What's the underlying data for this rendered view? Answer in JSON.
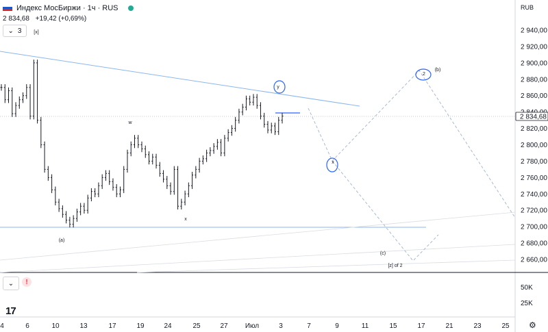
{
  "header": {
    "symbol": "Индекс МосБиржи · 1ч · RUS",
    "price": "2 834,68",
    "change": "+19,42 (+0,69%)",
    "flag_colors": [
      "#ffffff",
      "#1c57c8",
      "#d62828"
    ],
    "status_color": "#22ab94"
  },
  "controls": {
    "collapse_chevron": "⌄",
    "collapse_count": "3",
    "pane_chevron": "⌄",
    "warning_mark": "!",
    "logo": "17",
    "currency": "RUB",
    "settings_icon": "gear-icon",
    "settings_glyph": "⚙"
  },
  "chart_data": {
    "type": "candlestick",
    "currency": "RUB",
    "price_axis_ticks": [
      "2 940,00",
      "2 920,00",
      "2 900,00",
      "2 880,00",
      "2 860,00",
      "2 840,00",
      "2 820,00",
      "2 800,00",
      "2 780,00",
      "2 760,00",
      "2 740,00",
      "2 720,00",
      "2 700,00",
      "2 680,00",
      "2 660,00"
    ],
    "price_axis_tick_values": [
      2940,
      2920,
      2900,
      2880,
      2860,
      2840,
      2820,
      2800,
      2780,
      2760,
      2740,
      2720,
      2700,
      2680,
      2660
    ],
    "current_price_label": "2 834,68",
    "current_price": 2834.68,
    "volume_axis_ticks": [
      "50K",
      "25K"
    ],
    "time_axis_ticks": [
      "4",
      "6",
      "10",
      "13",
      "17",
      "19",
      "24",
      "25",
      "27",
      "Июл",
      "3",
      "7",
      "9",
      "11",
      "15",
      "17",
      "21",
      "23",
      "25"
    ],
    "price_path_hourly": [
      2870,
      2855,
      2866,
      2838,
      2848,
      2855,
      2860,
      2870,
      2835,
      2900,
      2830,
      2800,
      2770,
      2760,
      2745,
      2730,
      2722,
      2715,
      2708,
      2703,
      2710,
      2718,
      2725,
      2720,
      2735,
      2743,
      2740,
      2750,
      2760,
      2765,
      2755,
      2748,
      2740,
      2745,
      2770,
      2790,
      2800,
      2808,
      2800,
      2795,
      2788,
      2780,
      2785,
      2775,
      2765,
      2758,
      2750,
      2743,
      2770,
      2725,
      2730,
      2740,
      2750,
      2763,
      2770,
      2780,
      2783,
      2790,
      2793,
      2798,
      2803,
      2790,
      2808,
      2815,
      2820,
      2830,
      2840,
      2846,
      2856,
      2852,
      2858,
      2848,
      2835,
      2825,
      2818,
      2823,
      2816,
      2830,
      2835
    ],
    "annotations": [
      "[x]",
      "w",
      "(a)",
      "x",
      "y",
      "(b)",
      "(c)",
      "[z] of 2",
      "x",
      "2"
    ]
  }
}
